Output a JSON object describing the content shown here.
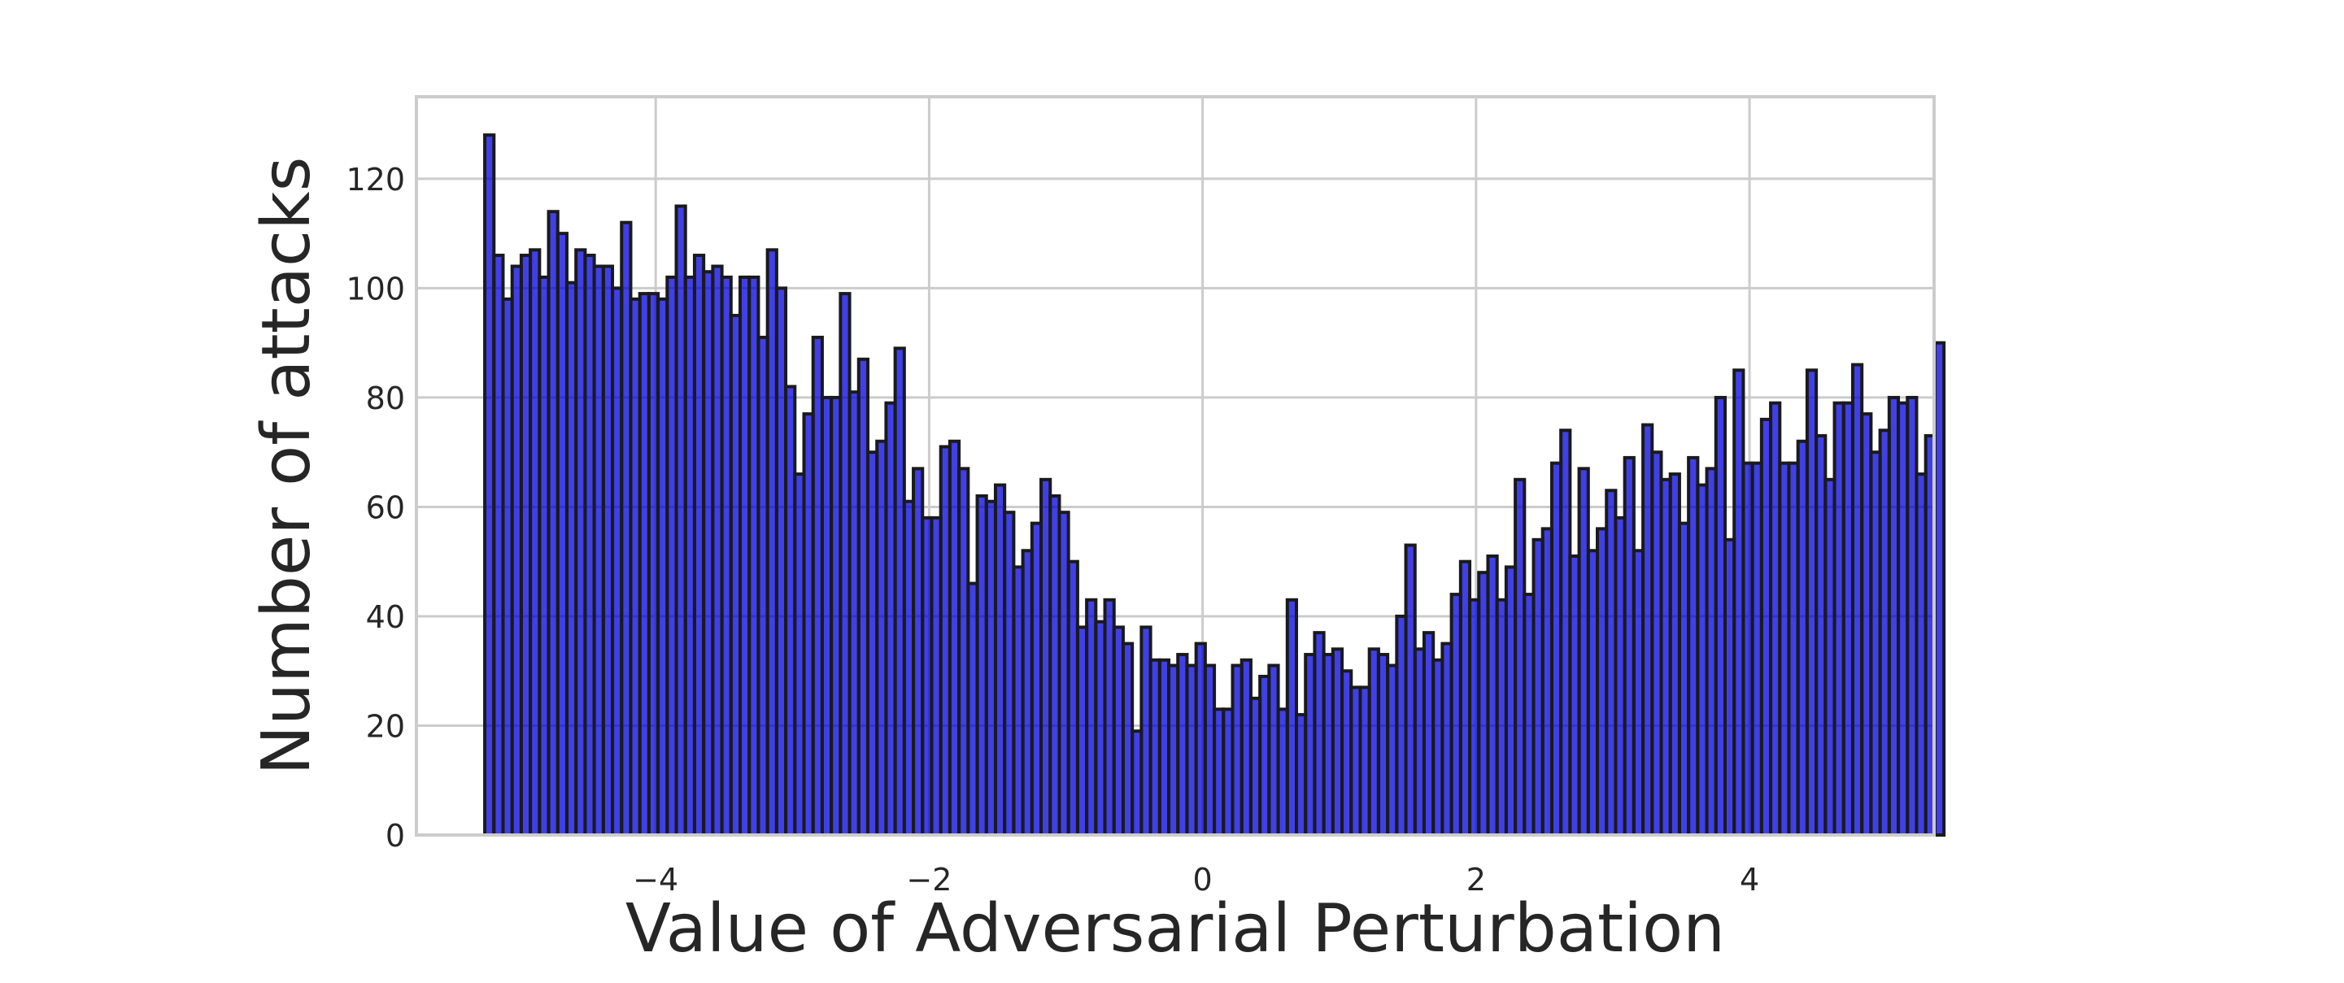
{
  "chart_data": {
    "type": "bar",
    "title": "",
    "xlabel": "Value of Adversarial Perturbation",
    "ylabel": "Number of attacks",
    "xlim": [
      -5.75,
      5.35
    ],
    "ylim": [
      0,
      135
    ],
    "grid": true,
    "bar_color": "#0000dd",
    "bar_alpha": 0.75,
    "edge_color": "#1a1a1a",
    "x_ticks": [
      -4,
      -2,
      0,
      2,
      4
    ],
    "x_tick_labels": [
      "−4",
      "−2",
      "0",
      "2",
      "4"
    ],
    "y_ticks": [
      0,
      20,
      40,
      60,
      80,
      100,
      120
    ],
    "y_tick_labels": [
      "0",
      "20",
      "40",
      "60",
      "80",
      "100",
      "120"
    ],
    "bin_start": -5.25,
    "bin_width": 0.0667,
    "values": [
      128,
      106,
      98,
      104,
      106,
      107,
      102,
      114,
      110,
      101,
      107,
      106,
      104,
      104,
      100,
      112,
      98,
      99,
      99,
      98,
      102,
      115,
      102,
      106,
      103,
      104,
      102,
      95,
      102,
      102,
      91,
      107,
      100,
      82,
      66,
      77,
      91,
      80,
      80,
      99,
      81,
      87,
      70,
      72,
      79,
      89,
      61,
      67,
      58,
      58,
      71,
      72,
      67,
      46,
      62,
      61,
      64,
      59,
      49,
      52,
      57,
      65,
      62,
      59,
      50,
      38,
      43,
      39,
      43,
      38,
      35,
      19,
      38,
      32,
      32,
      31,
      33,
      31,
      35,
      31,
      23,
      23,
      31,
      32,
      25,
      29,
      31,
      23,
      43,
      22,
      33,
      37,
      33,
      34,
      30,
      27,
      27,
      34,
      33,
      31,
      40,
      53,
      34,
      37,
      32,
      35,
      44,
      50,
      43,
      48,
      51,
      43,
      49,
      65,
      44,
      54,
      56,
      68,
      74,
      51,
      67,
      52,
      56,
      63,
      58,
      69,
      52,
      75,
      70,
      65,
      66,
      57,
      69,
      64,
      67,
      80,
      54,
      85,
      68,
      68,
      76,
      79,
      68,
      68,
      72,
      85,
      73,
      65,
      79,
      79,
      86,
      77,
      70,
      74,
      80,
      79,
      80,
      66,
      73,
      90
    ]
  }
}
